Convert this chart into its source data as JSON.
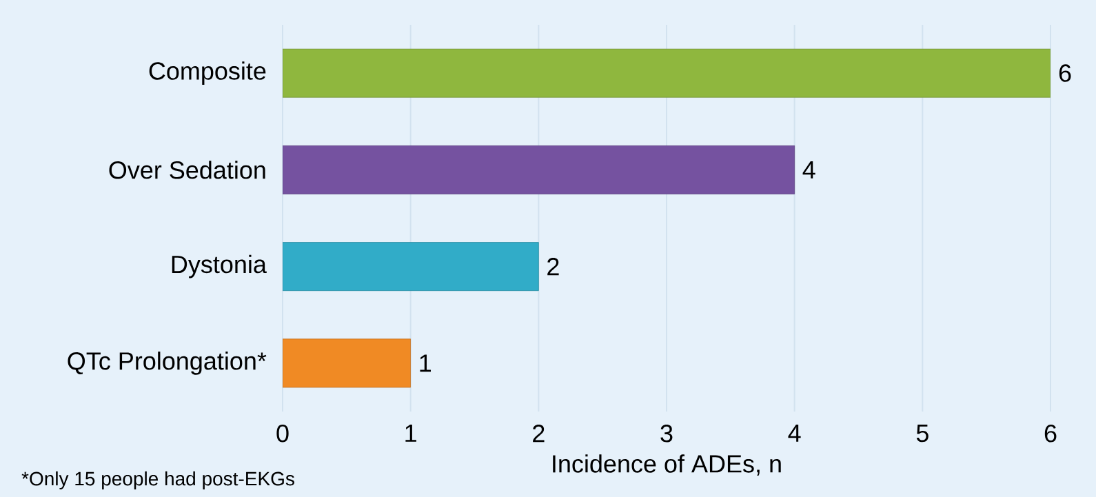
{
  "chart_data": {
    "type": "bar",
    "orientation": "horizontal",
    "categories": [
      "Composite",
      "Over Sedation",
      "Dystonia",
      "QTc Prolongation*"
    ],
    "values": [
      6,
      4,
      2,
      1
    ],
    "colors": [
      "#8fb73e",
      "#7552a0",
      "#31acc8",
      "#f08a24"
    ],
    "xlim": [
      0,
      6
    ],
    "xticks": [
      0,
      1,
      2,
      3,
      4,
      5,
      6
    ],
    "xlabel": "Incidence of ADEs, n",
    "data_labels": true,
    "grid": "x",
    "annotations": [
      "*Only 15 people had post-EKGs"
    ]
  }
}
